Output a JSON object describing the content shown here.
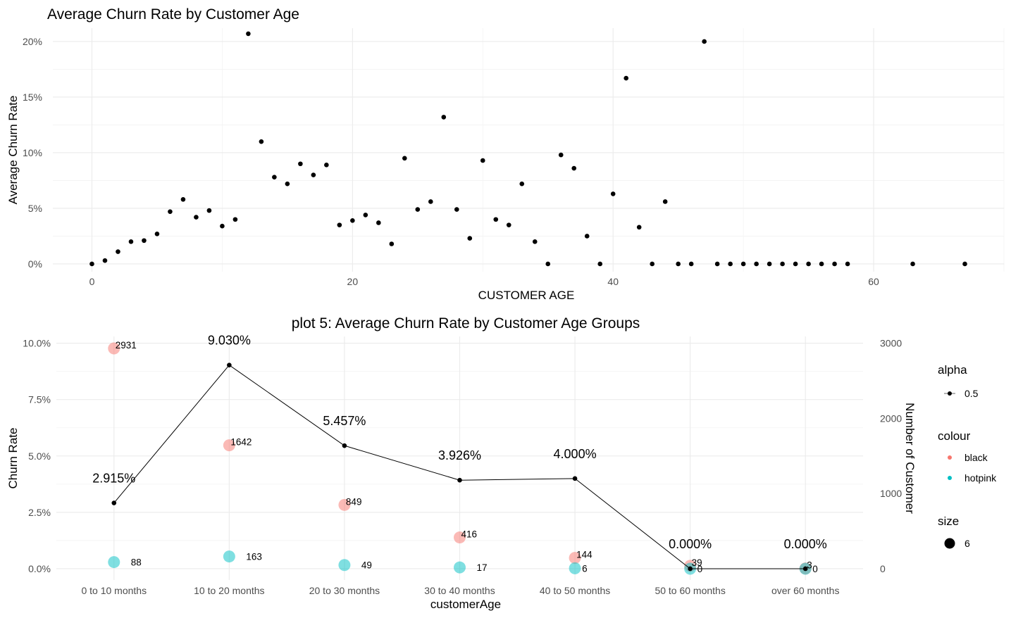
{
  "chart_data": [
    {
      "type": "scatter",
      "title": "Average Churn Rate by Customer Age",
      "xlabel": "CUSTOMER AGE",
      "ylabel": "Average Churn Rate",
      "xlim": [
        -3,
        70
      ],
      "ylim": [
        -0.7,
        21.2
      ],
      "x_ticks": [
        0,
        20,
        40,
        60
      ],
      "y_ticks": [
        0,
        5,
        10,
        15,
        20
      ],
      "y_tick_labels": [
        "0%",
        "5%",
        "10%",
        "15%",
        "20%"
      ],
      "grid": true,
      "point_color": "#000000",
      "points": [
        {
          "x": 0,
          "y": 0.0
        },
        {
          "x": 1,
          "y": 0.3
        },
        {
          "x": 2,
          "y": 1.1
        },
        {
          "x": 3,
          "y": 2.0
        },
        {
          "x": 4,
          "y": 2.1
        },
        {
          "x": 5,
          "y": 2.7
        },
        {
          "x": 6,
          "y": 4.7
        },
        {
          "x": 7,
          "y": 5.8
        },
        {
          "x": 8,
          "y": 4.2
        },
        {
          "x": 9,
          "y": 4.8
        },
        {
          "x": 10,
          "y": 3.4
        },
        {
          "x": 11,
          "y": 4.0
        },
        {
          "x": 12,
          "y": 20.7
        },
        {
          "x": 13,
          "y": 11.0
        },
        {
          "x": 14,
          "y": 7.8
        },
        {
          "x": 15,
          "y": 7.2
        },
        {
          "x": 16,
          "y": 9.0
        },
        {
          "x": 17,
          "y": 8.0
        },
        {
          "x": 18,
          "y": 8.9
        },
        {
          "x": 19,
          "y": 3.5
        },
        {
          "x": 20,
          "y": 3.9
        },
        {
          "x": 21,
          "y": 4.4
        },
        {
          "x": 22,
          "y": 3.7
        },
        {
          "x": 23,
          "y": 1.8
        },
        {
          "x": 24,
          "y": 9.5
        },
        {
          "x": 25,
          "y": 4.9
        },
        {
          "x": 26,
          "y": 5.6
        },
        {
          "x": 27,
          "y": 13.2
        },
        {
          "x": 28,
          "y": 4.9
        },
        {
          "x": 29,
          "y": 2.3
        },
        {
          "x": 30,
          "y": 9.3
        },
        {
          "x": 31,
          "y": 4.0
        },
        {
          "x": 32,
          "y": 3.5
        },
        {
          "x": 33,
          "y": 7.2
        },
        {
          "x": 34,
          "y": 2.0
        },
        {
          "x": 35,
          "y": 0.0
        },
        {
          "x": 36,
          "y": 9.8
        },
        {
          "x": 37,
          "y": 8.6
        },
        {
          "x": 38,
          "y": 2.5
        },
        {
          "x": 39,
          "y": 0.0
        },
        {
          "x": 40,
          "y": 6.3
        },
        {
          "x": 41,
          "y": 16.7
        },
        {
          "x": 42,
          "y": 3.3
        },
        {
          "x": 43,
          "y": 0.0
        },
        {
          "x": 44,
          "y": 5.6
        },
        {
          "x": 45,
          "y": 0.0
        },
        {
          "x": 46,
          "y": 0.0
        },
        {
          "x": 47,
          "y": 20.0
        },
        {
          "x": 48,
          "y": 0.0
        },
        {
          "x": 49,
          "y": 0.0
        },
        {
          "x": 50,
          "y": 0.0
        },
        {
          "x": 51,
          "y": 0.0
        },
        {
          "x": 52,
          "y": 0.0
        },
        {
          "x": 53,
          "y": 0.0
        },
        {
          "x": 54,
          "y": 0.0
        },
        {
          "x": 55,
          "y": 0.0
        },
        {
          "x": 56,
          "y": 0.0
        },
        {
          "x": 57,
          "y": 0.0
        },
        {
          "x": 58,
          "y": 0.0
        },
        {
          "x": 63,
          "y": 0.0
        },
        {
          "x": 67,
          "y": 0.0
        }
      ]
    },
    {
      "type": "line",
      "title": "plot 5: Average Churn Rate by Customer Age Groups",
      "xlabel": "customerAge",
      "ylabel": "Churn Rate",
      "ylabel_right": "Number of Customer",
      "categories": [
        "0 to 10 months",
        "10 to 20 months",
        "20 to 30 months",
        "30 to 40 months",
        "40 to 50 months",
        "50 to 60 months",
        "over 60 months"
      ],
      "ylim": [
        -0.5,
        10.3
      ],
      "y_ticks": [
        0,
        2.5,
        5,
        7.5,
        10
      ],
      "y_tick_labels": [
        "0.0%",
        "2.5%",
        "5.0%",
        "7.5%",
        "10.0%"
      ],
      "y2_ticks": [
        0,
        1000,
        2000,
        3000
      ],
      "y2_tick_labels": [
        "0",
        "1000",
        "2000",
        "3000"
      ],
      "grid": true,
      "churn_rate": [
        2.915,
        9.03,
        5.457,
        3.926,
        4.0,
        0.0,
        0.0
      ],
      "churn_labels": [
        "2.915%",
        "9.030%",
        "5.457%",
        "3.926%",
        "4.000%",
        "0.000%",
        "0.000%"
      ],
      "customers_black": [
        2931,
        1642,
        849,
        416,
        144,
        39,
        3
      ],
      "customers_hotpink": [
        88,
        163,
        49,
        17,
        6,
        0,
        0
      ],
      "colors": {
        "black": "#F8766D",
        "hotpink": "#00BFC4"
      },
      "legend": {
        "position": "right",
        "alpha_title": "alpha",
        "alpha_value": "0.5",
        "colour_title": "colour",
        "colour_items": [
          "black",
          "hotpink"
        ],
        "size_title": "size",
        "size_value": "6"
      }
    }
  ]
}
